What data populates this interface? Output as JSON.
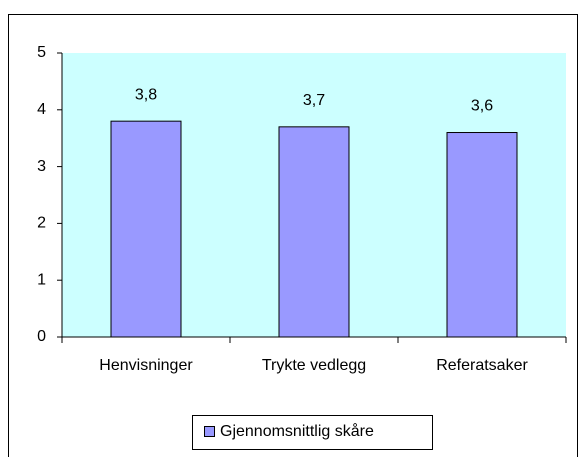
{
  "chart_data": {
    "type": "bar",
    "categories": [
      "Henvisninger",
      "Trykte vedlegg",
      "Referatsaker"
    ],
    "series": [
      {
        "name": "Gjennomsnittlig skåre",
        "color": "#9999ff",
        "values": [
          3.8,
          3.7,
          3.6
        ],
        "value_labels": [
          "3,8",
          "3,7",
          "3,6"
        ]
      }
    ],
    "ylim": [
      0,
      5
    ],
    "yticks": [
      0,
      1,
      2,
      3,
      4,
      5
    ],
    "grid": false,
    "plot_background": "#ccffff",
    "legend": "bottom"
  }
}
